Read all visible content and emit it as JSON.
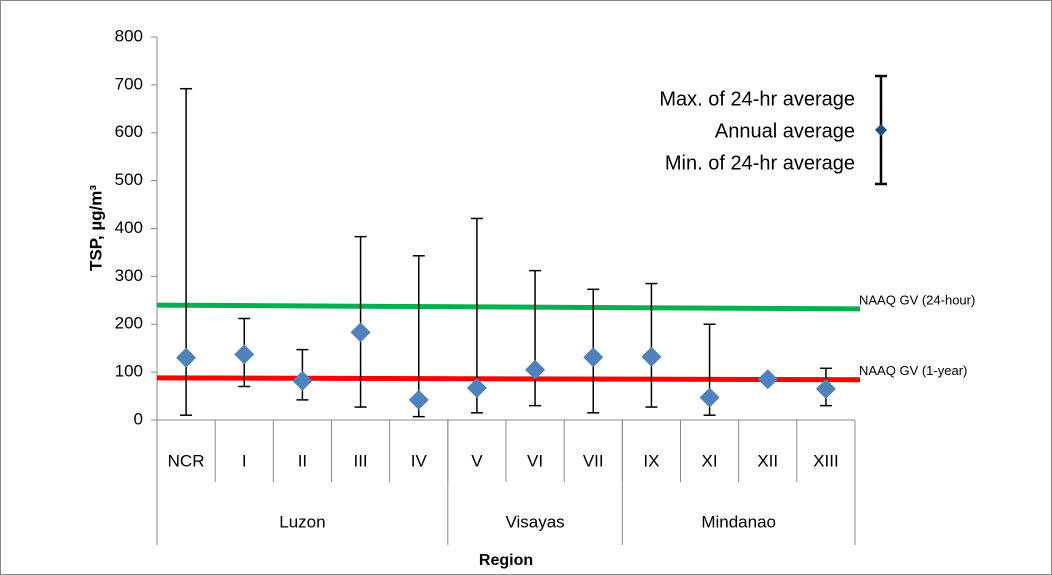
{
  "chart_data": {
    "type": "errorbar",
    "ylabel": "TSP, µg/m³",
    "xlabel": "Region",
    "categories": [
      "NCR",
      "I",
      "II",
      "III",
      "IV",
      "V",
      "VI",
      "VII",
      "IX",
      "XI",
      "XII",
      "XIII"
    ],
    "groups": [
      {
        "name": "Luzon",
        "count": 5
      },
      {
        "name": "Visayas",
        "count": 3
      },
      {
        "name": "Mindanao",
        "count": 4
      }
    ],
    "series": [
      {
        "name": "Max. of 24-hr average",
        "color": "#000000",
        "values": [
          692,
          212,
          147,
          383,
          343,
          421,
          312,
          273,
          285,
          200,
          92,
          108
        ]
      },
      {
        "name": "Annual average",
        "color": "#4f81bd",
        "values": [
          130,
          137,
          82,
          183,
          42,
          67,
          105,
          131,
          132,
          47,
          85,
          65
        ]
      },
      {
        "name": "Min. of 24-hr average",
        "color": "#000000",
        "values": [
          10,
          70,
          42,
          27,
          7,
          15,
          30,
          15,
          27,
          10,
          78,
          30
        ]
      }
    ],
    "reference_lines": [
      {
        "name": "NAAQ GV (24-hour)",
        "color": "#00b050",
        "values": [
          240,
          232
        ]
      },
      {
        "name": "NAAQ GV (1-year)",
        "color": "#ff0000",
        "values": [
          88,
          84
        ]
      }
    ],
    "ylim": [
      0,
      800
    ],
    "yticks": [
      0,
      100,
      200,
      300,
      400,
      500,
      600,
      700,
      800
    ]
  }
}
